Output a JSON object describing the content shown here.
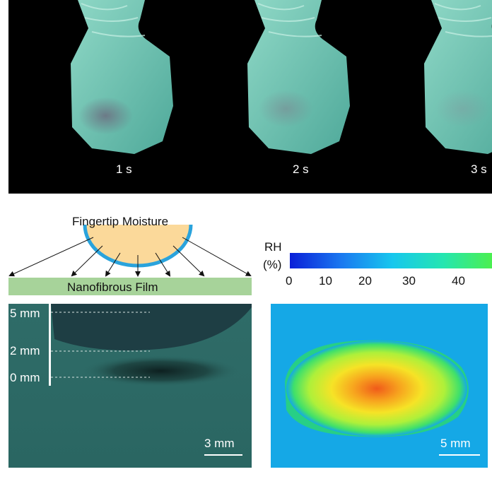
{
  "top_strip": {
    "frames": [
      {
        "time_label": "1 s"
      },
      {
        "time_label": "2 s"
      },
      {
        "time_label": "3 s"
      }
    ]
  },
  "schematic": {
    "source_label": "Fingertip Moisture",
    "film_label": "Nanofibrous Film"
  },
  "colorbar": {
    "title_line1": "RH",
    "title_line2": "(%)",
    "ticks": [
      "0",
      "10",
      "20",
      "30",
      "40"
    ]
  },
  "photo_left": {
    "distance_labels": [
      "5 mm",
      "2 mm",
      "0 mm"
    ],
    "scale_label": "3 mm"
  },
  "heatmap": {
    "scale_label": "5 mm"
  }
}
